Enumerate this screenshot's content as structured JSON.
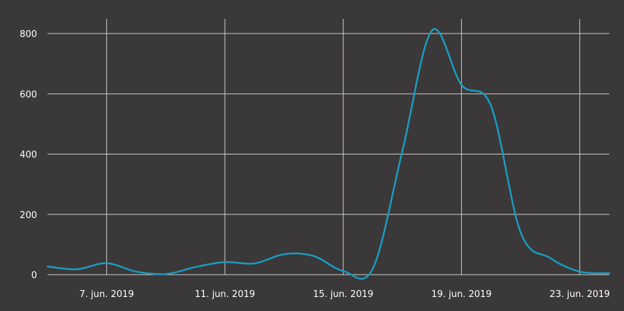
{
  "chart_data": {
    "type": "line",
    "title": "",
    "xlabel": "",
    "ylabel": "",
    "grid": true,
    "legend": "none",
    "x_start": "2019-06-05",
    "x_end": "2019-06-24",
    "ylim": [
      0,
      800
    ],
    "y_ticks": [
      0,
      200,
      400,
      600,
      800
    ],
    "x_ticks": [
      {
        "date": "2019-06-07",
        "label": "7. jun. 2019"
      },
      {
        "date": "2019-06-11",
        "label": "11. jun. 2019"
      },
      {
        "date": "2019-06-15",
        "label": "15. jun. 2019"
      },
      {
        "date": "2019-06-19",
        "label": "19. jun. 2019"
      },
      {
        "date": "2019-06-23",
        "label": "23. jun. 2019"
      }
    ],
    "series": [
      {
        "color": "#1a9cc0",
        "points": [
          {
            "x": "2019-06-05",
            "y": 27
          },
          {
            "x": "2019-06-06",
            "y": 18
          },
          {
            "x": "2019-06-07",
            "y": 38
          },
          {
            "x": "2019-06-08",
            "y": 10
          },
          {
            "x": "2019-06-09",
            "y": 2
          },
          {
            "x": "2019-06-10",
            "y": 25
          },
          {
            "x": "2019-06-11",
            "y": 42
          },
          {
            "x": "2019-06-12",
            "y": 37
          },
          {
            "x": "2019-06-13",
            "y": 68
          },
          {
            "x": "2019-06-14",
            "y": 62
          },
          {
            "x": "2019-06-15",
            "y": 12
          },
          {
            "x": "2019-06-16",
            "y": 20
          },
          {
            "x": "2019-06-17",
            "y": 410
          },
          {
            "x": "2019-06-18",
            "y": 810
          },
          {
            "x": "2019-06-19",
            "y": 630
          },
          {
            "x": "2019-06-20",
            "y": 560
          },
          {
            "x": "2019-06-21",
            "y": 140
          },
          {
            "x": "2019-06-22",
            "y": 55
          },
          {
            "x": "2019-06-23",
            "y": 10
          },
          {
            "x": "2019-06-24",
            "y": 5
          }
        ]
      }
    ]
  }
}
